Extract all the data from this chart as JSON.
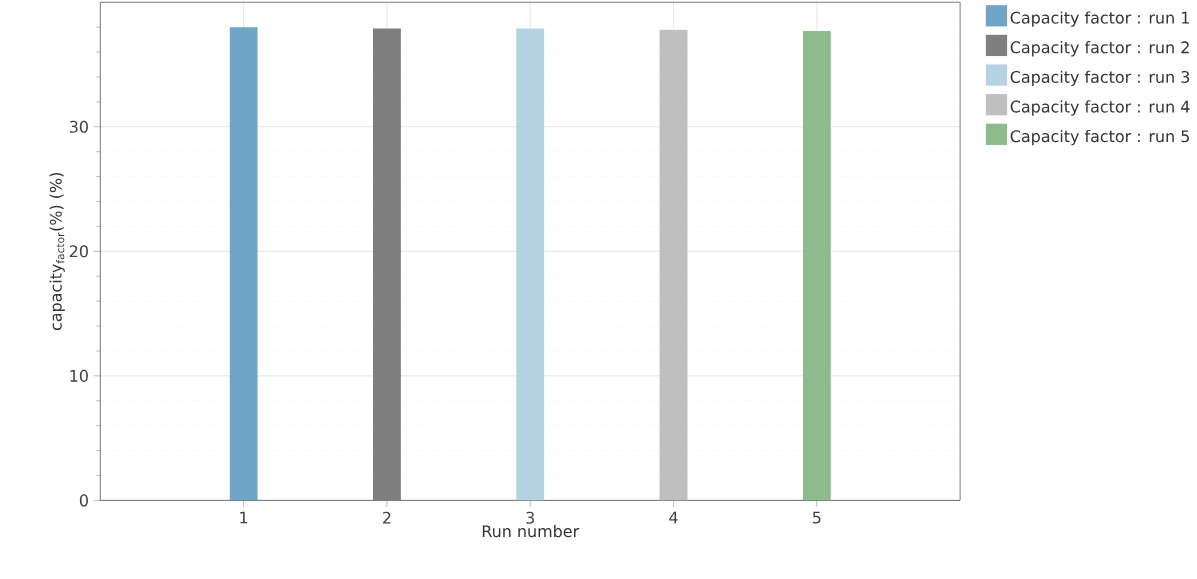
{
  "chart_data": {
    "type": "bar",
    "xlabel": "Run number",
    "ylabel": "capacity$_{factor}$(%) (%)",
    "series": [
      {
        "name": "Capacity factor : run 1",
        "color": "#6fa5c7",
        "x": [
          1
        ],
        "values": [
          38
        ]
      },
      {
        "name": "Capacity factor : run 2",
        "color": "#7f7f7f",
        "x": [
          2
        ],
        "values": [
          37.9
        ]
      },
      {
        "name": "Capacity factor : run 3",
        "color": "#b5d2e3",
        "x": [
          3
        ],
        "values": [
          37.9
        ]
      },
      {
        "name": "Capacity factor : run 4",
        "color": "#bfbfbf",
        "x": [
          4
        ],
        "values": [
          37.8
        ]
      },
      {
        "name": "Capacity factor : run 5",
        "color": "#8dbb8b",
        "x": [
          5
        ],
        "values": [
          37.7
        ]
      }
    ],
    "xlim": [
      0,
      6
    ],
    "xticks": [
      1,
      2,
      3,
      4,
      5
    ],
    "ylim": [
      0,
      40
    ],
    "yticks": [
      0,
      {
        "value": 2,
        "label": null
      },
      {
        "value": 4,
        "label": null
      },
      {
        "value": 6,
        "label": null
      },
      {
        "value": 8,
        "label": null
      },
      10,
      {
        "value": 12,
        "label": null
      },
      {
        "value": 14,
        "label": null
      },
      {
        "value": 16,
        "label": null
      },
      {
        "value": 18,
        "label": null
      },
      20,
      {
        "value": 22,
        "label": null
      },
      {
        "value": 24,
        "label": null
      },
      {
        "value": 26,
        "label": null
      },
      {
        "value": 28,
        "label": null
      },
      30,
      {
        "value": 32,
        "label": null
      },
      {
        "value": 34,
        "label": null
      },
      {
        "value": 36,
        "label": null
      },
      {
        "value": 38,
        "label": null
      }
    ],
    "grid": true,
    "legend": "right"
  }
}
